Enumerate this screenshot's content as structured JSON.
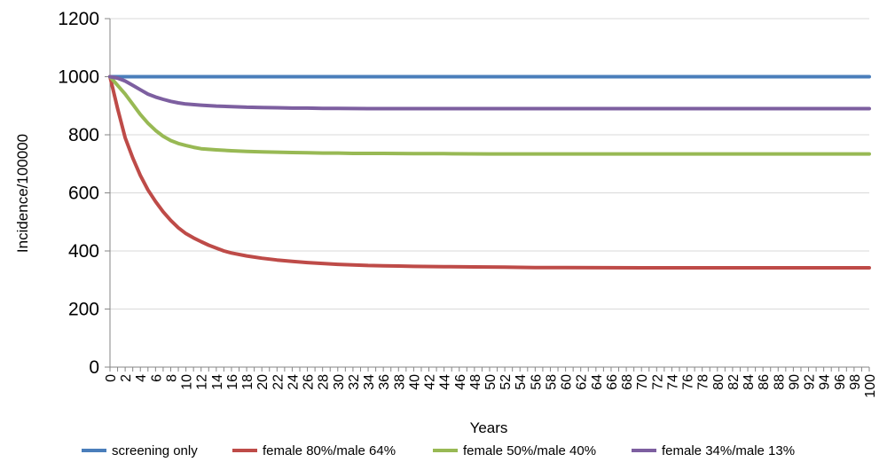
{
  "chart_data": {
    "type": "line",
    "title": "",
    "xlabel": "Years",
    "ylabel": "Incidence/100000",
    "xlim": [
      0,
      100
    ],
    "ylim": [
      0,
      1200
    ],
    "x_ticks": [
      0,
      2,
      4,
      6,
      8,
      10,
      12,
      14,
      16,
      18,
      20,
      22,
      24,
      26,
      28,
      30,
      32,
      34,
      36,
      38,
      40,
      42,
      44,
      46,
      48,
      50,
      52,
      54,
      56,
      58,
      60,
      62,
      64,
      66,
      68,
      70,
      72,
      74,
      76,
      78,
      80,
      82,
      84,
      86,
      88,
      90,
      92,
      94,
      96,
      98,
      100
    ],
    "y_ticks": [
      0,
      200,
      400,
      600,
      800,
      1000,
      1200
    ],
    "grid": "horizontal",
    "legend_position": "bottom",
    "series": [
      {
        "name": "screening only",
        "color": "#4a7ebb",
        "x": [
          0,
          100
        ],
        "y": [
          1000,
          1000
        ]
      },
      {
        "name": "female 80%/male 64%",
        "color": "#be4b48",
        "x": [
          0,
          1,
          2,
          3,
          4,
          5,
          6,
          7,
          8,
          9,
          10,
          11,
          12,
          13,
          14,
          15,
          16,
          18,
          20,
          22,
          24,
          26,
          28,
          30,
          32,
          34,
          36,
          38,
          40,
          44,
          48,
          52,
          56,
          60,
          70,
          80,
          90,
          100
        ],
        "y": [
          1000,
          890,
          790,
          720,
          660,
          610,
          570,
          535,
          505,
          480,
          460,
          445,
          432,
          420,
          410,
          400,
          393,
          383,
          375,
          369,
          364,
          360,
          357,
          354,
          352,
          350,
          349,
          348,
          347,
          346,
          345,
          344,
          343,
          343,
          342,
          342,
          342,
          342
        ]
      },
      {
        "name": "female 50%/male 40%",
        "color": "#98b954",
        "x": [
          0,
          1,
          2,
          3,
          4,
          5,
          6,
          7,
          8,
          9,
          10,
          11,
          12,
          14,
          16,
          18,
          20,
          22,
          24,
          26,
          28,
          30,
          32,
          36,
          40,
          44,
          50,
          60,
          70,
          80,
          90,
          100
        ],
        "y": [
          1000,
          970,
          940,
          905,
          870,
          840,
          815,
          795,
          780,
          770,
          763,
          757,
          752,
          748,
          745,
          743,
          741,
          740,
          739,
          738,
          737,
          737,
          736,
          736,
          735,
          735,
          734,
          734,
          734,
          734,
          734,
          734
        ]
      },
      {
        "name": "female 34%/male 13%",
        "color": "#7d5fa0",
        "x": [
          0,
          1,
          2,
          3,
          4,
          5,
          6,
          7,
          8,
          9,
          10,
          12,
          14,
          16,
          18,
          20,
          22,
          24,
          26,
          28,
          30,
          34,
          40,
          50,
          60,
          70,
          80,
          90,
          100
        ],
        "y": [
          1000,
          995,
          985,
          970,
          955,
          940,
          930,
          922,
          915,
          910,
          906,
          902,
          899,
          897,
          895,
          894,
          893,
          892,
          892,
          891,
          891,
          890,
          890,
          890,
          890,
          890,
          890,
          890,
          890
        ]
      }
    ]
  }
}
